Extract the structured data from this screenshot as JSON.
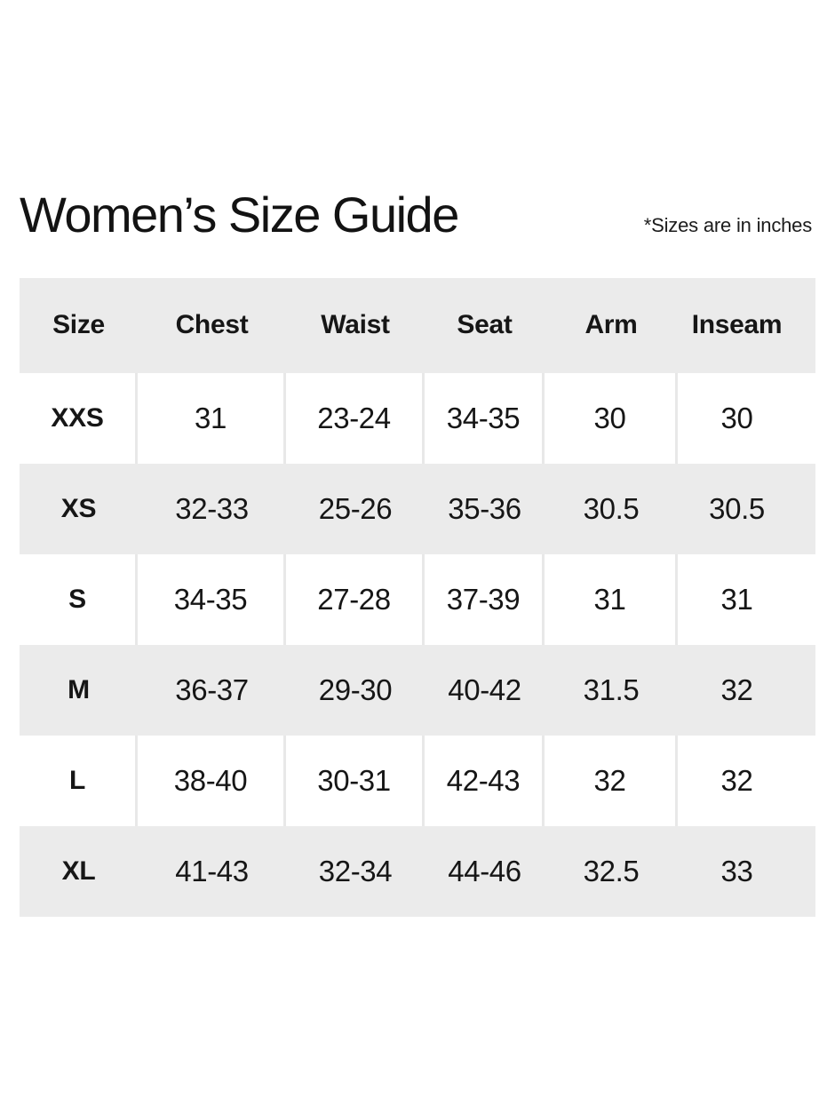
{
  "header": {
    "title": "Women’s Size Guide",
    "note": "*Sizes are in inches"
  },
  "table": {
    "columns": [
      "Size",
      "Chest",
      "Waist",
      "Seat",
      "Arm",
      "Inseam"
    ],
    "rows": [
      {
        "label": "XXS",
        "values": [
          "31",
          "23-24",
          "34-35",
          "30",
          "30"
        ]
      },
      {
        "label": "XS",
        "values": [
          "32-33",
          "25-26",
          "35-36",
          "30.5",
          "30.5"
        ]
      },
      {
        "label": "S",
        "values": [
          "34-35",
          "27-28",
          "37-39",
          "31",
          "31"
        ]
      },
      {
        "label": "M",
        "values": [
          "36-37",
          "29-30",
          "40-42",
          "31.5",
          "32"
        ]
      },
      {
        "label": "L",
        "values": [
          "38-40",
          "30-31",
          "42-43",
          "32",
          "32"
        ]
      },
      {
        "label": "XL",
        "values": [
          "41-43",
          "32-34",
          "44-46",
          "32.5",
          "33"
        ]
      }
    ],
    "colors": {
      "band_gray": "#ebebeb",
      "divider_gray": "#e8e8e8",
      "text": "#161616"
    }
  }
}
